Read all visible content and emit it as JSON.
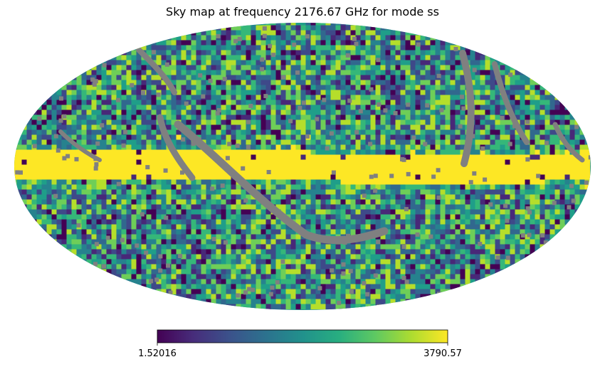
{
  "chart_data": {
    "type": "heatmap",
    "projection": "mollweide",
    "title": "Sky map at frequency 2176.67 GHz for mode ss",
    "colormap": "viridis",
    "unseen_color": "#808080",
    "colorbar": {
      "min": 1.52016,
      "max": 3790.57,
      "min_label": "1.52016",
      "max_label": "3790.57",
      "orientation": "horizontal",
      "placement": "bottom"
    },
    "features": {
      "galactic_plane": "bright band along the equator with values near 3790.57",
      "masked_regions": "grey scan-strip arcs and scattered grey pixels (no data)"
    }
  }
}
